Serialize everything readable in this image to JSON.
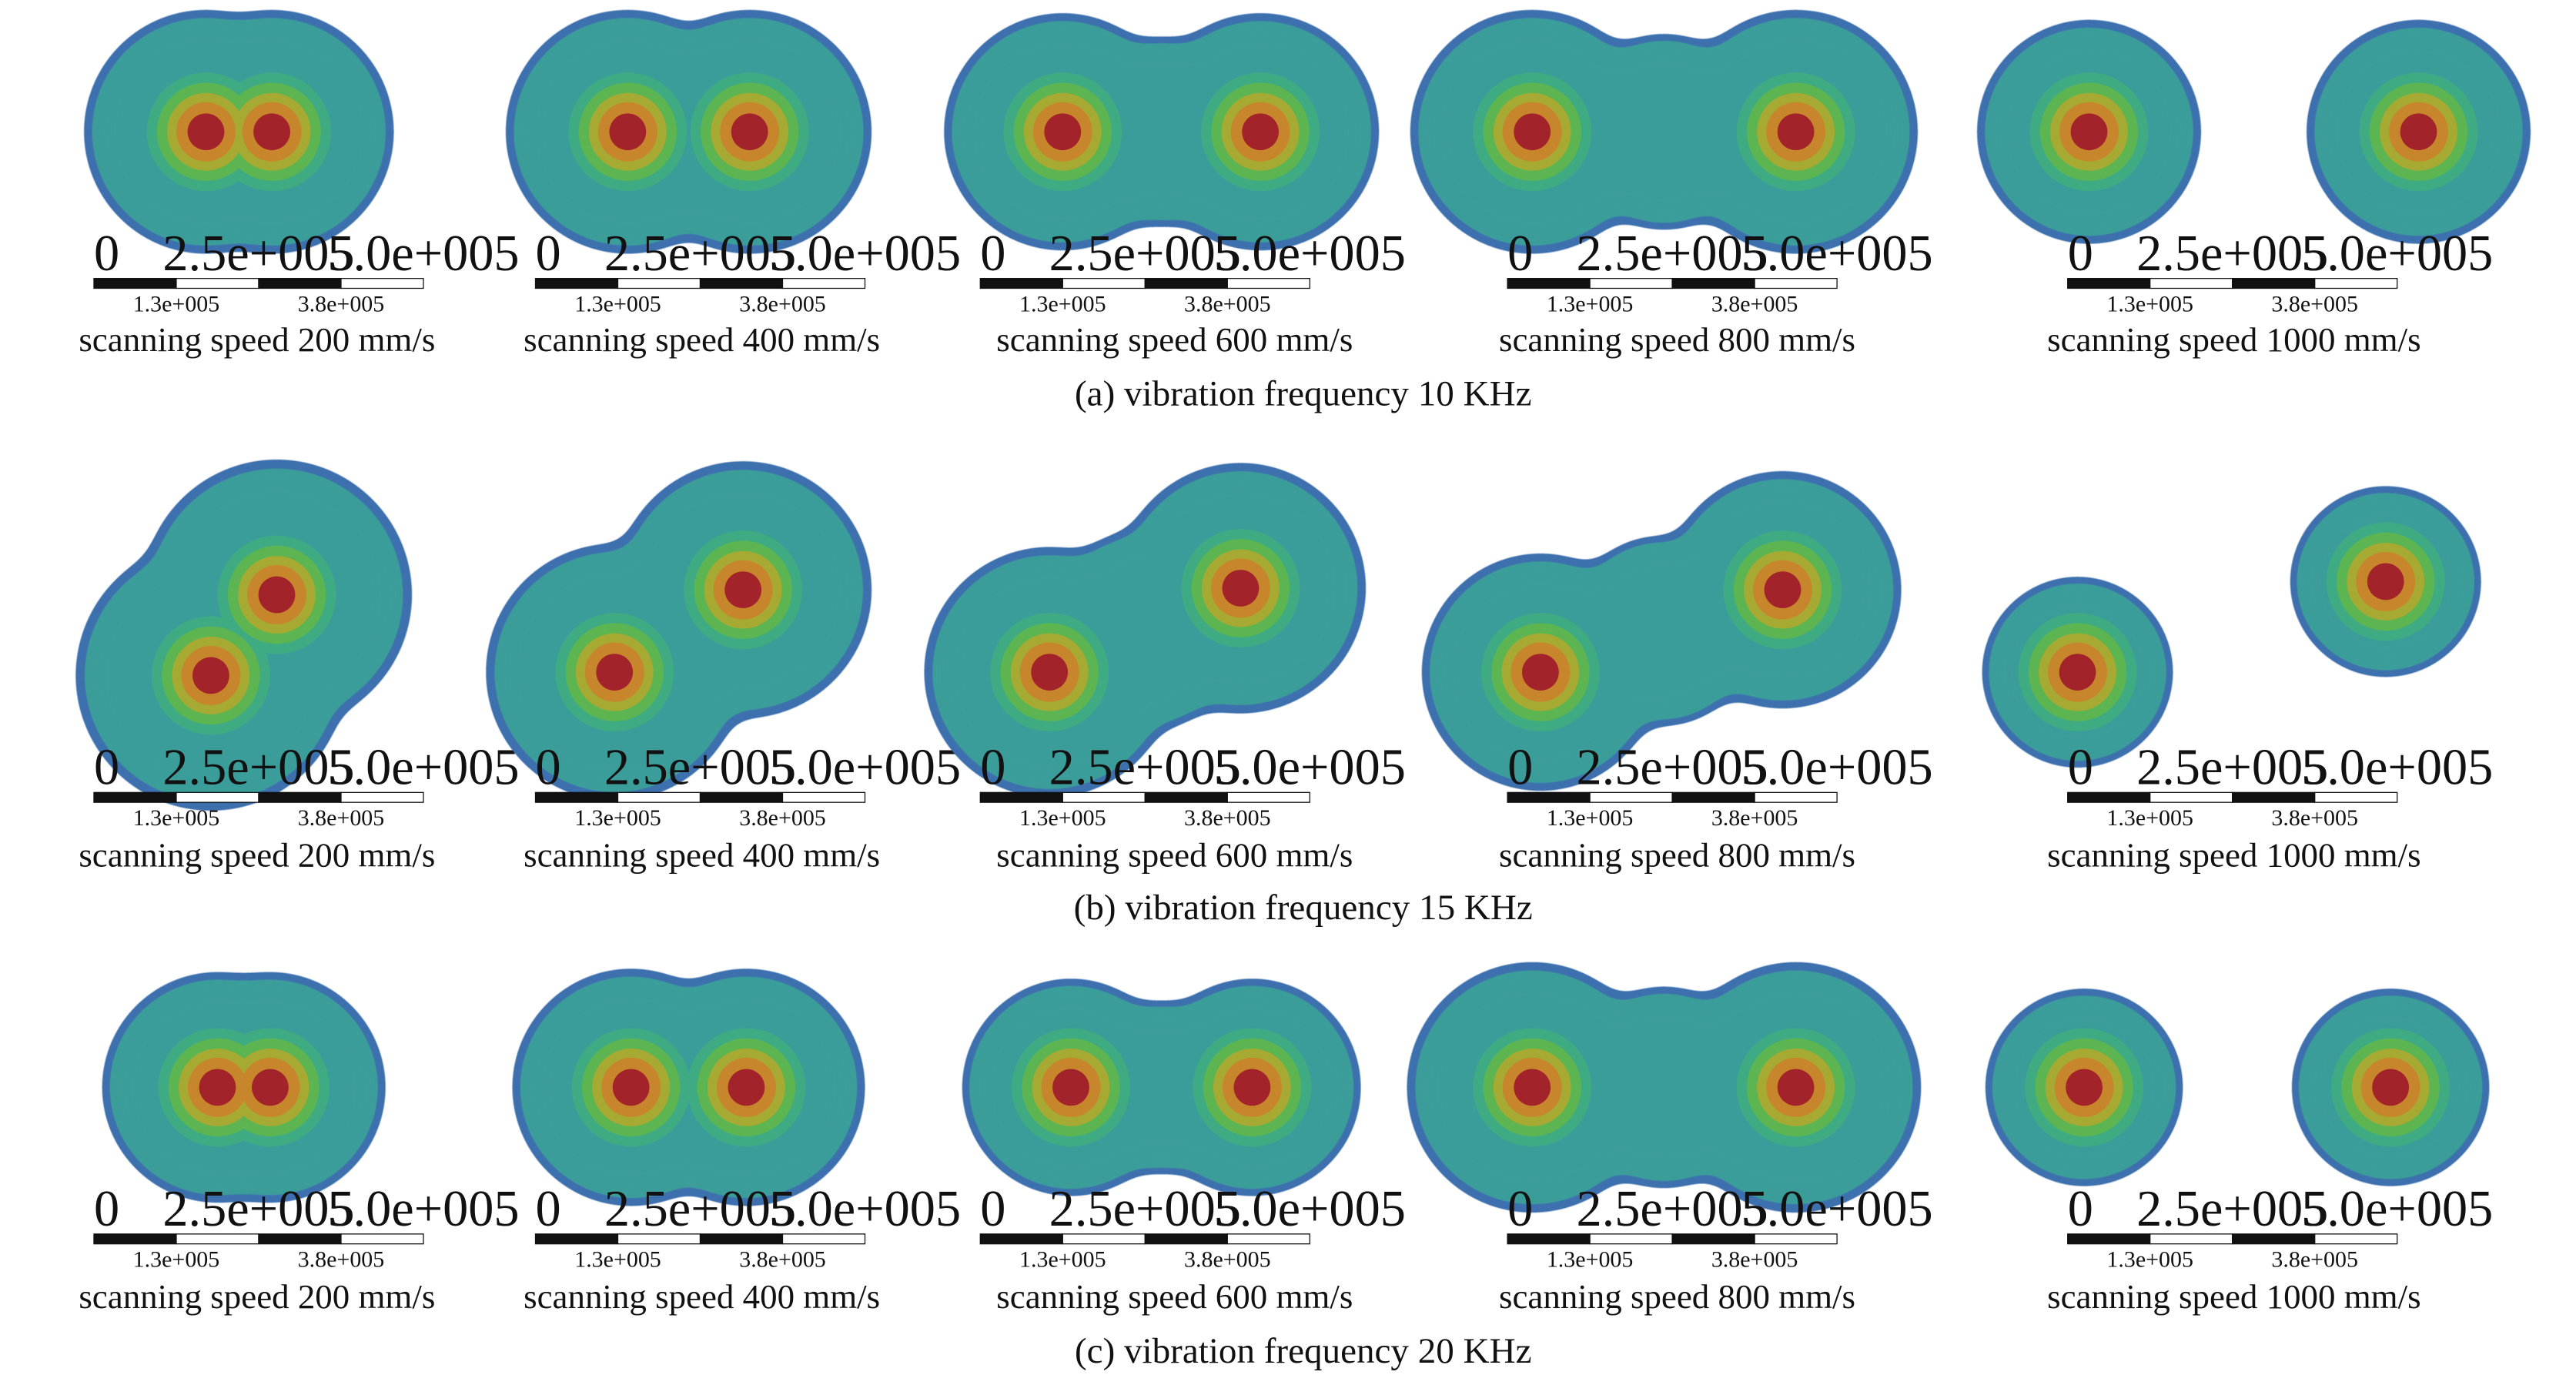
{
  "figure": {
    "scale_bar": {
      "top_labels": [
        "0",
        "2.5e+005",
        "5.0e+005"
      ],
      "bottom_labels": [
        "1.3e+005",
        "3.8e+005"
      ]
    },
    "colors": {
      "outer_edge": "#3d6fae",
      "base": "#3a9d9a",
      "ring_teal_green": "#3fab83",
      "ring_green": "#5cb551",
      "ring_olive": "#a6aa33",
      "ring_orange": "#c8862c",
      "core": "#a3232a"
    },
    "rows": [
      {
        "caption": "(a) vibration frequency 10 KHz",
        "panels": [
          {
            "speed_label": "scanning speed 200 mm/s",
            "shape": "merged-pair",
            "tilt": "horizontal"
          },
          {
            "speed_label": "scanning speed 400 mm/s",
            "shape": "merged-pair",
            "tilt": "horizontal"
          },
          {
            "speed_label": "scanning speed 600 mm/s",
            "shape": "necked-pair",
            "tilt": "horizontal"
          },
          {
            "speed_label": "scanning speed 800 mm/s",
            "shape": "necked-pair",
            "tilt": "horizontal"
          },
          {
            "speed_label": "scanning speed 1000 mm/s",
            "shape": "separate-pair",
            "tilt": "horizontal"
          }
        ]
      },
      {
        "caption": "(b) vibration frequency 15 KHz",
        "panels": [
          {
            "speed_label": "scanning speed 200 mm/s",
            "shape": "merged-pair",
            "tilt": "diagonal"
          },
          {
            "speed_label": "scanning speed 400 mm/s",
            "shape": "merged-pair",
            "tilt": "diagonal"
          },
          {
            "speed_label": "scanning speed 600 mm/s",
            "shape": "necked-pair",
            "tilt": "diagonal"
          },
          {
            "speed_label": "scanning speed 800 mm/s",
            "shape": "necked-pair",
            "tilt": "diagonal"
          },
          {
            "speed_label": "scanning speed 1000 mm/s",
            "shape": "separate-pair",
            "tilt": "diagonal"
          }
        ]
      },
      {
        "caption": "(c) vibration frequency 20 KHz",
        "panels": [
          {
            "speed_label": "scanning speed 200 mm/s",
            "shape": "merged-pair",
            "tilt": "horizontal"
          },
          {
            "speed_label": "scanning speed 400 mm/s",
            "shape": "merged-pair",
            "tilt": "horizontal"
          },
          {
            "speed_label": "scanning speed 600 mm/s",
            "shape": "necked-pair",
            "tilt": "horizontal"
          },
          {
            "speed_label": "scanning speed 800 mm/s",
            "shape": "necked-pair",
            "tilt": "horizontal"
          },
          {
            "speed_label": "scanning speed 1000 mm/s",
            "shape": "separate-pair",
            "tilt": "horizontal"
          }
        ]
      }
    ]
  }
}
